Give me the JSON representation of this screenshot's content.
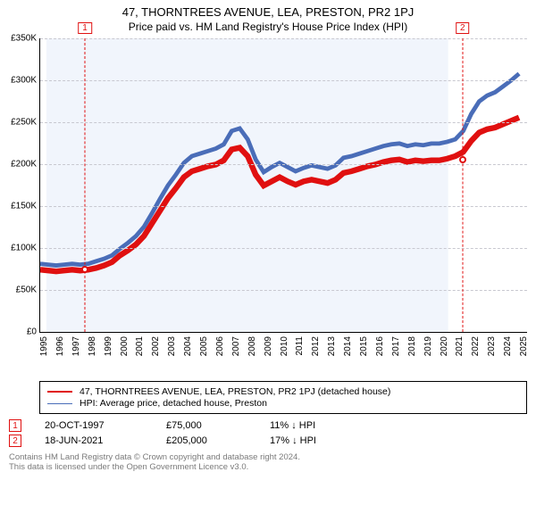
{
  "title": "47, THORNTREES AVENUE, LEA, PRESTON, PR2 1PJ",
  "subtitle": "Price paid vs. HM Land Registry's House Price Index (HPI)",
  "colors": {
    "series_property": "#e01010",
    "series_hpi": "#4a6db8",
    "marker_border": "#e01010",
    "grid": "#c8c8d0",
    "plot_bg": "#f1f5fc",
    "footer_text": "#7a7a7a"
  },
  "y_axis": {
    "min": 0,
    "max": 350,
    "ticks": [
      0,
      50,
      100,
      150,
      200,
      250,
      300,
      350
    ],
    "tick_labels": [
      "£0",
      "£50K",
      "£100K",
      "£150K",
      "£200K",
      "£250K",
      "£300K",
      "£350K"
    ],
    "fontsize": 10
  },
  "x_axis": {
    "min": 1995,
    "max": 2025.5,
    "ticks": [
      1995,
      1996,
      1997,
      1998,
      1999,
      2000,
      2001,
      2002,
      2003,
      2004,
      2005,
      2006,
      2007,
      2008,
      2009,
      2010,
      2011,
      2012,
      2013,
      2014,
      2015,
      2016,
      2017,
      2018,
      2019,
      2020,
      2021,
      2022,
      2023,
      2024,
      2025
    ],
    "fontsize": 10
  },
  "series": [
    {
      "key": "property",
      "label": "47, THORNTREES AVENUE, LEA, PRESTON, PR2 1PJ (detached house)",
      "color": "#e01010",
      "line_width": 2,
      "points": [
        [
          1995,
          75
        ],
        [
          1995.5,
          74
        ],
        [
          1996,
          73
        ],
        [
          1996.5,
          74
        ],
        [
          1997,
          75
        ],
        [
          1997.5,
          74
        ],
        [
          1998,
          75
        ],
        [
          1998.5,
          77
        ],
        [
          1999,
          80
        ],
        [
          1999.5,
          84
        ],
        [
          2000,
          92
        ],
        [
          2000.5,
          98
        ],
        [
          2001,
          105
        ],
        [
          2001.5,
          115
        ],
        [
          2002,
          130
        ],
        [
          2002.5,
          145
        ],
        [
          2003,
          160
        ],
        [
          2003.5,
          172
        ],
        [
          2004,
          185
        ],
        [
          2004.5,
          192
        ],
        [
          2005,
          195
        ],
        [
          2005.5,
          198
        ],
        [
          2006,
          200
        ],
        [
          2006.5,
          205
        ],
        [
          2007,
          218
        ],
        [
          2007.5,
          220
        ],
        [
          2008,
          210
        ],
        [
          2008.5,
          188
        ],
        [
          2009,
          175
        ],
        [
          2009.5,
          180
        ],
        [
          2010,
          185
        ],
        [
          2010.5,
          180
        ],
        [
          2011,
          176
        ],
        [
          2011.5,
          180
        ],
        [
          2012,
          182
        ],
        [
          2012.5,
          180
        ],
        [
          2013,
          178
        ],
        [
          2013.5,
          182
        ],
        [
          2014,
          190
        ],
        [
          2014.5,
          192
        ],
        [
          2015,
          195
        ],
        [
          2015.5,
          198
        ],
        [
          2016,
          200
        ],
        [
          2016.5,
          203
        ],
        [
          2017,
          205
        ],
        [
          2017.5,
          206
        ],
        [
          2018,
          203
        ],
        [
          2018.5,
          205
        ],
        [
          2019,
          204
        ],
        [
          2019.5,
          205
        ],
        [
          2020,
          205
        ],
        [
          2020.5,
          207
        ],
        [
          2021,
          210
        ],
        [
          2021.5,
          215
        ],
        [
          2022,
          228
        ],
        [
          2022.5,
          238
        ],
        [
          2023,
          242
        ],
        [
          2023.5,
          244
        ],
        [
          2024,
          248
        ],
        [
          2024.5,
          252
        ],
        [
          2025,
          256
        ]
      ]
    },
    {
      "key": "hpi",
      "label": "HPI: Average price, detached house, Preston",
      "color": "#4a6db8",
      "line_width": 1.5,
      "points": [
        [
          1995,
          82
        ],
        [
          1995.5,
          81
        ],
        [
          1996,
          80
        ],
        [
          1996.5,
          81
        ],
        [
          1997,
          82
        ],
        [
          1997.5,
          81
        ],
        [
          1998,
          82
        ],
        [
          1998.5,
          85
        ],
        [
          1999,
          88
        ],
        [
          1999.5,
          92
        ],
        [
          2000,
          100
        ],
        [
          2000.5,
          107
        ],
        [
          2001,
          115
        ],
        [
          2001.5,
          126
        ],
        [
          2002,
          142
        ],
        [
          2002.5,
          159
        ],
        [
          2003,
          175
        ],
        [
          2003.5,
          188
        ],
        [
          2004,
          202
        ],
        [
          2004.5,
          210
        ],
        [
          2005,
          213
        ],
        [
          2005.5,
          216
        ],
        [
          2006,
          219
        ],
        [
          2006.5,
          224
        ],
        [
          2007,
          240
        ],
        [
          2007.5,
          243
        ],
        [
          2008,
          230
        ],
        [
          2008.5,
          206
        ],
        [
          2009,
          191
        ],
        [
          2009.5,
          197
        ],
        [
          2010,
          202
        ],
        [
          2010.5,
          197
        ],
        [
          2011,
          192
        ],
        [
          2011.5,
          196
        ],
        [
          2012,
          199
        ],
        [
          2012.5,
          197
        ],
        [
          2013,
          195
        ],
        [
          2013.5,
          199
        ],
        [
          2014,
          208
        ],
        [
          2014.5,
          210
        ],
        [
          2015,
          213
        ],
        [
          2015.5,
          216
        ],
        [
          2016,
          219
        ],
        [
          2016.5,
          222
        ],
        [
          2017,
          224
        ],
        [
          2017.5,
          225
        ],
        [
          2018,
          222
        ],
        [
          2018.5,
          224
        ],
        [
          2019,
          223
        ],
        [
          2019.5,
          225
        ],
        [
          2020,
          225
        ],
        [
          2020.5,
          227
        ],
        [
          2021,
          230
        ],
        [
          2021.5,
          240
        ],
        [
          2022,
          260
        ],
        [
          2022.5,
          275
        ],
        [
          2023,
          282
        ],
        [
          2023.5,
          286
        ],
        [
          2024,
          293
        ],
        [
          2024.5,
          300
        ],
        [
          2025,
          308
        ]
      ]
    }
  ],
  "markers": [
    {
      "n": "1",
      "x": 1997.8,
      "y": 75
    },
    {
      "n": "2",
      "x": 2021.46,
      "y": 205
    }
  ],
  "transactions": [
    {
      "n": "1",
      "date": "20-OCT-1997",
      "price": "£75,000",
      "hpi_note": "11% ↓ HPI"
    },
    {
      "n": "2",
      "date": "18-JUN-2021",
      "price": "£205,000",
      "hpi_note": "17% ↓ HPI"
    }
  ],
  "footer": {
    "line1": "Contains HM Land Registry data © Crown copyright and database right 2024.",
    "line2": "This data is licensed under the Open Government Licence v3.0."
  }
}
